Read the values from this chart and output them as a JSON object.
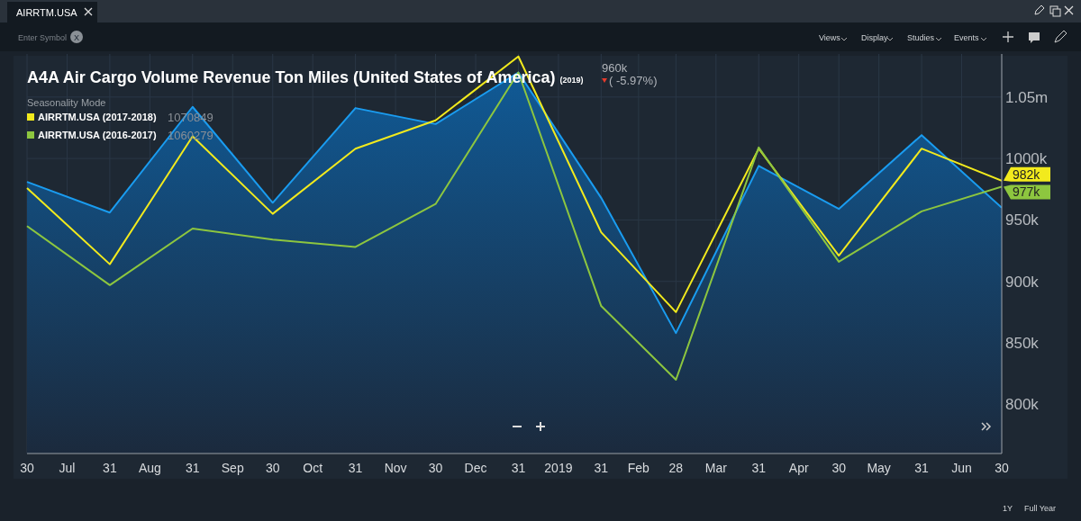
{
  "chart_data": {
    "type": "area",
    "title": "A4A Air Cargo Volume Revenue Ton Miles (United States of America)",
    "subtitle": "(2019)",
    "legend_title": "Seasonality Mode",
    "legend": "top left",
    "grid": true,
    "x": [
      "2018-06-30",
      "2018-07-31",
      "2018-08-31",
      "2018-09-30",
      "2018-10-31",
      "2018-11-30",
      "2018-12-31",
      "2019-01-31",
      "2019-02-28",
      "2019-03-31",
      "2019-04-30",
      "2019-05-31",
      "2019-06-30"
    ],
    "xlim": [
      "2018-06-30",
      "2019-06-30"
    ],
    "xticks": [
      {
        "value": "2018-06-30",
        "label": "30"
      },
      {
        "value": "2018-07-15",
        "label": "Jul"
      },
      {
        "value": "2018-07-31",
        "label": "31"
      },
      {
        "value": "2018-08-15",
        "label": "Aug"
      },
      {
        "value": "2018-08-31",
        "label": "31"
      },
      {
        "value": "2018-09-15",
        "label": "Sep"
      },
      {
        "value": "2018-09-30",
        "label": "30"
      },
      {
        "value": "2018-10-15",
        "label": "Oct"
      },
      {
        "value": "2018-10-31",
        "label": "31"
      },
      {
        "value": "2018-11-15",
        "label": "Nov"
      },
      {
        "value": "2018-11-30",
        "label": "30"
      },
      {
        "value": "2018-12-15",
        "label": "Dec"
      },
      {
        "value": "2018-12-31",
        "label": "31"
      },
      {
        "value": "2019-01-15",
        "label": "2019"
      },
      {
        "value": "2019-01-31",
        "label": "31"
      },
      {
        "value": "2019-02-14",
        "label": "Feb"
      },
      {
        "value": "2019-02-28",
        "label": "28"
      },
      {
        "value": "2019-03-15",
        "label": "Mar"
      },
      {
        "value": "2019-03-31",
        "label": "31"
      },
      {
        "value": "2019-04-15",
        "label": "Apr"
      },
      {
        "value": "2019-04-30",
        "label": "30"
      },
      {
        "value": "2019-05-15",
        "label": "May"
      },
      {
        "value": "2019-05-31",
        "label": "31"
      },
      {
        "value": "2019-06-15",
        "label": "Jun"
      },
      {
        "value": "2019-06-30",
        "label": "30"
      }
    ],
    "ylim": [
      760000,
      1085000
    ],
    "yticks": [
      {
        "value": 800000,
        "label": "800k"
      },
      {
        "value": 850000,
        "label": "850k"
      },
      {
        "value": 900000,
        "label": "900k"
      },
      {
        "value": 950000,
        "label": "950k"
      },
      {
        "value": 1000000,
        "label": "1000k"
      },
      {
        "value": 1050000,
        "label": "1.05m"
      }
    ],
    "series": [
      {
        "color": "#1a9cf0",
        "values": [
          981000,
          956000,
          1042000,
          964000,
          1041000,
          1028000,
          1070000,
          968000,
          858000,
          994000,
          959000,
          1019000,
          960000
        ]
      },
      {
        "type": "line",
        "name": "AIRRTM.USA (2017-2018)",
        "color": "#f2ea1d",
        "values": [
          976000,
          914000,
          1018000,
          955000,
          1008000,
          1031000,
          1083000,
          940000,
          875000,
          1008000,
          921000,
          1008000,
          982000
        ],
        "value_labels": [
          null,
          null,
          null,
          null,
          null,
          null,
          null,
          null,
          null,
          null,
          null,
          null,
          "982k"
        ]
      },
      {
        "type": "line",
        "name": "AIRRTM.USA (2016-2017)",
        "color": "#8dc63f",
        "values": [
          945000,
          897000,
          943000,
          934000,
          928000,
          963000,
          1070000,
          880000,
          820000,
          1009000,
          916000,
          957000,
          977000
        ],
        "value_labels": [
          null,
          null,
          null,
          null,
          null,
          null,
          null,
          null,
          null,
          null,
          null,
          null,
          "977k"
        ]
      }
    ],
    "annotations": [
      "960k",
      "( -5.97%)",
      "1070849",
      "1060279",
      "AIRRTM.USA",
      "Enter Symbol",
      "X",
      "Views",
      "Display",
      "Studies",
      "Events",
      "1Y",
      "Full Year"
    ]
  }
}
